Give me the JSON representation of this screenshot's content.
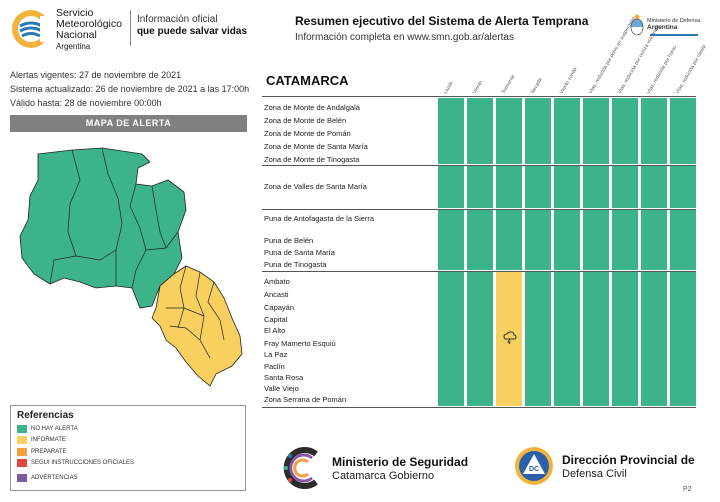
{
  "header": {
    "org_lines": [
      "Servicio",
      "Meteorológico",
      "Nacional"
    ],
    "org_country": "Argentina",
    "tagline_1": "Información oficial",
    "tagline_2": "que puede salvar vidas",
    "title": "Resumen ejecutivo del Sistema de Alerta Temprana",
    "subtitle": "Información completa en www.smn.gob.ar/alertas",
    "ministry_line_1": "Ministerio de Defensa",
    "ministry_line_2": "Argentina"
  },
  "info": {
    "vigentes": "Alertas vigentes: 27 de noviembre de 2021",
    "actualizado": "Sistema actualizado: 26 de noviembre de 2021 a las 17:00h",
    "valido": "Válido hasta: 28 de noviembre 00:00h"
  },
  "map": {
    "title": "MAPA DE ALERTA",
    "colors": {
      "green": "#3cb389",
      "yellow": "#f7d060"
    }
  },
  "legend": {
    "title": "Referencias",
    "items": [
      {
        "label": "NO HAY ALERTA",
        "color": "#3cb389"
      },
      {
        "label": "INFORMATE",
        "color": "#f7d060"
      },
      {
        "label": "PREPARATE",
        "color": "#f0a040"
      },
      {
        "label": "SEGUI INSTRUCCIONES OFICIALES",
        "color": "#e04a3a"
      },
      {
        "label": "ADVERTENCIAS",
        "color": "#7a5aa0"
      }
    ]
  },
  "table": {
    "province": "CATAMARCA",
    "columns": [
      "Lluvia",
      "Viento",
      "Tormenta",
      "Nevada",
      "Viento zonda",
      "Vtas. reducida por polvo en suspensión",
      "Vtas. reducida por ceniza volcánica",
      "Vtas. reducida por humo",
      "Vtas. reducida por niebla"
    ],
    "groups": [
      {
        "zones": [
          "Zona de Monte de Andalgalá",
          "Zona de Monte de Belén",
          "Zona de Monte de Pomán",
          "Zona de Monte de Santa María",
          "Zona de Monte de Tinogasta"
        ],
        "levels": [
          "green",
          "green",
          "green",
          "green",
          "green",
          "green",
          "green",
          "green",
          "green"
        ]
      },
      {
        "zones": [
          "Zona de Valles de Santa María"
        ],
        "levels": [
          "green",
          "green",
          "green",
          "green",
          "green",
          "green",
          "green",
          "green",
          "green"
        ]
      },
      {
        "zones": [
          "Puna de Antofagasta de la Sierra",
          "Puna de Belén",
          "Puna de Santa María",
          "Puna de Tinogasta"
        ],
        "levels": [
          "green",
          "green",
          "green",
          "green",
          "green",
          "green",
          "green",
          "green",
          "green"
        ]
      },
      {
        "zones": [
          "Ambato",
          "Ancasti",
          "Capayán",
          "Capital",
          "El Alto",
          "Fray Mamerto Esquiú",
          "La Paz",
          "Paclín",
          "Santa Rosa",
          "Valle Viejo",
          "Zona Serrana de Pomán"
        ],
        "levels": [
          "green",
          "green",
          "yellow",
          "green",
          "green",
          "green",
          "green",
          "green",
          "green"
        ],
        "icon": "storm-icon"
      }
    ]
  },
  "footer": {
    "ministry_title": "Ministerio de Seguridad",
    "ministry_sub": "Catamarca Gobierno",
    "dp_title": "Dirección Provincial de",
    "dp_sub": "Defensa Civil",
    "dp_badge": "DC",
    "page": "P2"
  }
}
